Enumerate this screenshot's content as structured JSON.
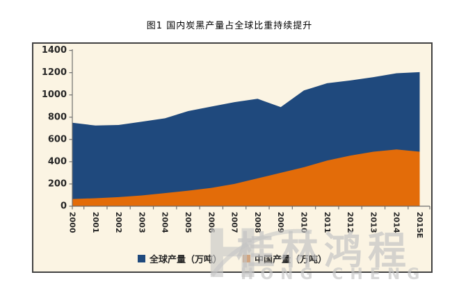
{
  "title": "图1 国内炭黑产量占全球比重持续提升",
  "chart_data": {
    "type": "area",
    "title": "图1 国内炭黑产量占全球比重持续提升",
    "stacked": false,
    "grid": false,
    "legend_position": "bottom",
    "plot_bg": "#FBF4E3",
    "ylim": [
      0,
      1400
    ],
    "ytick_step": 200,
    "xlabel": "",
    "ylabel": "",
    "categories": [
      "2000",
      "2001",
      "2002",
      "2003",
      "2004",
      "2005",
      "2006",
      "2007",
      "2008",
      "2009",
      "2010",
      "2011",
      "2012",
      "2013",
      "2014",
      "2015E"
    ],
    "series": [
      {
        "name": "全球产量（万吨）",
        "color": "#1F497D",
        "values": [
          750,
          725,
          730,
          760,
          790,
          855,
          895,
          935,
          965,
          890,
          1040,
          1105,
          1130,
          1160,
          1195,
          1205
        ]
      },
      {
        "name": "中国产量（万吨）",
        "color": "#E36C09",
        "values": [
          65,
          72,
          82,
          97,
          118,
          140,
          165,
          200,
          250,
          300,
          350,
          410,
          455,
          490,
          510,
          490
        ]
      }
    ]
  },
  "legend": {
    "items": [
      {
        "label": "全球产量（万吨）",
        "color": "#1F497D"
      },
      {
        "label": "中国产量（万吨）",
        "color": "#E36C09"
      }
    ]
  },
  "watermark": {
    "cn": "桂林鸿程",
    "en": "HONG CHENG",
    "h": "H",
    "color": "#C6C6C6"
  },
  "colors": {
    "box_border": "#404040",
    "axis": "#6e6e6e",
    "tick_label": "#262626",
    "plot_bg": "#FBF4E3"
  }
}
